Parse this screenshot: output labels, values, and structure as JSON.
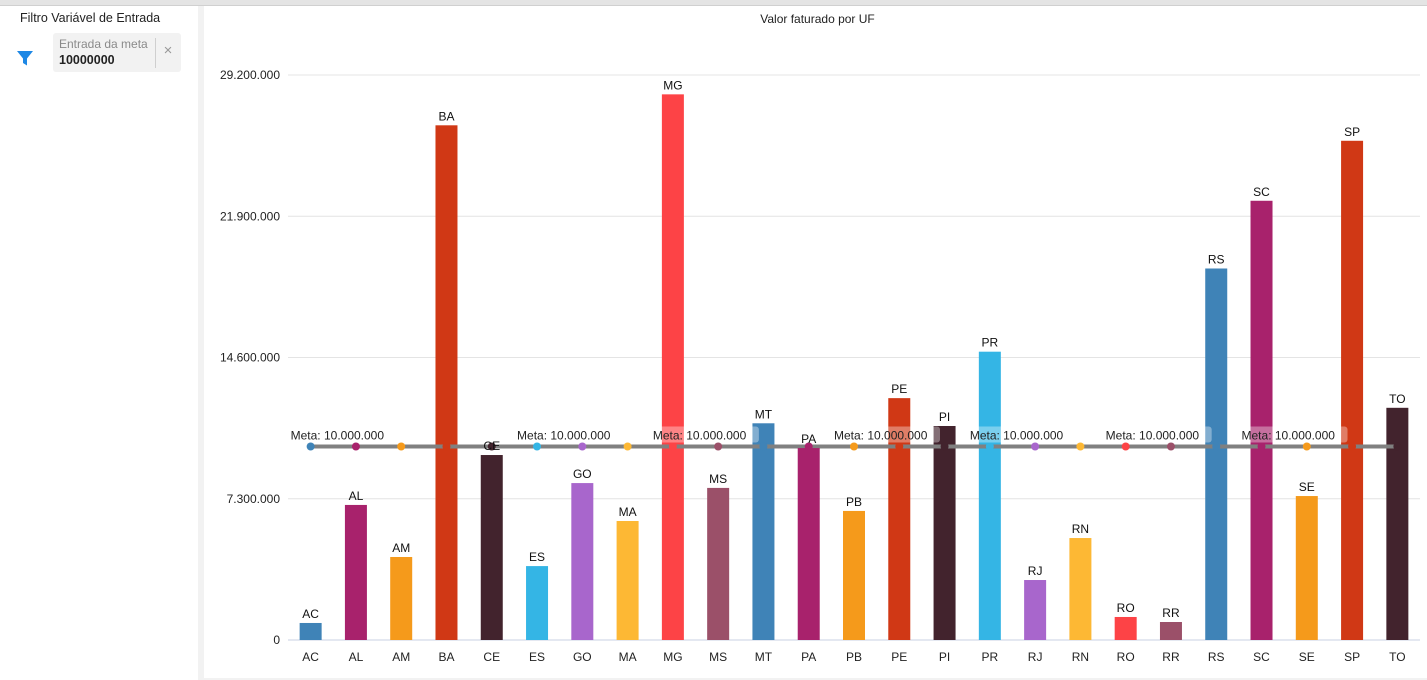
{
  "filter_panel": {
    "title": "Filtro Variável de Entrada",
    "icon": "filter-icon",
    "input_label": "Entrada da meta",
    "input_value": "10000000",
    "clear_icon": "close-icon",
    "clear_glyph": "×"
  },
  "chart_data": {
    "type": "bar",
    "title": "Valor faturado por UF",
    "xlabel": "",
    "ylabel": "",
    "ylim": [
      0,
      29200000
    ],
    "yticks": [
      0,
      7300000,
      14600000,
      21900000,
      29200000
    ],
    "ytick_labels": [
      "0",
      "7.300.000",
      "14.600.000",
      "21.900.000",
      "29.200.000"
    ],
    "grid": true,
    "categories": [
      "AC",
      "AL",
      "AM",
      "BA",
      "CE",
      "ES",
      "GO",
      "MA",
      "MG",
      "MS",
      "MT",
      "PA",
      "PB",
      "PE",
      "PI",
      "PR",
      "RJ",
      "RN",
      "RO",
      "RR",
      "RS",
      "SC",
      "SE",
      "SP",
      "TO"
    ],
    "values": [
      880000,
      6980000,
      4290000,
      26600000,
      9560000,
      3820000,
      8110000,
      6150000,
      28200000,
      7860000,
      11200000,
      9920000,
      6670000,
      12500000,
      11060000,
      14900000,
      3100000,
      5270000,
      1190000,
      930000,
      19200000,
      22700000,
      7440000,
      25800000,
      12000000
    ],
    "data_labels": [
      "AC",
      "AL",
      "AM",
      "BA",
      "CE",
      "ES",
      "GO",
      "MA",
      "MG",
      "MS",
      "MT",
      "PA",
      "PB",
      "PE",
      "PI",
      "PR",
      "RJ",
      "RN",
      "RO",
      "RR",
      "RS",
      "SC",
      "SE",
      "SP",
      "TO"
    ],
    "colors": [
      "#3f83b7",
      "#a8226c",
      "#f59a1b",
      "#d03815",
      "#42232d",
      "#34b5e5",
      "#a866cc",
      "#fdb834",
      "#fd4346",
      "#9b5069",
      "#3f83b7",
      "#a8226c",
      "#f59a1b",
      "#d03815",
      "#42232d",
      "#34b5e5",
      "#a866cc",
      "#fdb834",
      "#fd4346",
      "#9b5069",
      "#3f83b7",
      "#a8226c",
      "#f59a1b",
      "#d03815",
      "#42232d"
    ],
    "reference_line": {
      "name": "Meta",
      "value": 10000000,
      "label": "Meta: 10.000.000",
      "color": "#808080",
      "label_at_categories": [
        "AC",
        "ES",
        "MG",
        "PB",
        "PR",
        "RO",
        "SC"
      ]
    }
  }
}
